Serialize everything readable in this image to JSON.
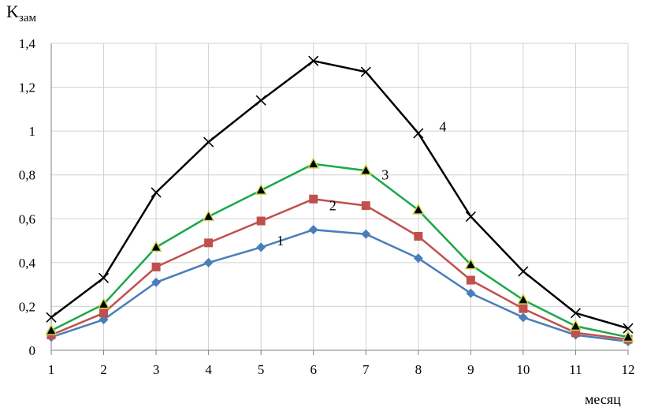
{
  "chart_data": {
    "type": "line",
    "title": "",
    "ylabel_main": "K",
    "ylabel_sub": "зам",
    "xlabel": "месяц",
    "x": [
      1,
      2,
      3,
      4,
      5,
      6,
      7,
      8,
      9,
      10,
      11,
      12
    ],
    "ylim": [
      0,
      1.4
    ],
    "yticks": [
      "0",
      "0,2",
      "0,4",
      "0,6",
      "0,8",
      "1",
      "1,2",
      "1,4"
    ],
    "xticks": [
      "1",
      "2",
      "3",
      "4",
      "5",
      "6",
      "7",
      "8",
      "9",
      "10",
      "11",
      "12"
    ],
    "grid": true,
    "series": [
      {
        "name": "1",
        "color": "#4a7ebb",
        "marker": "diamond",
        "values": [
          0.06,
          0.14,
          0.31,
          0.4,
          0.47,
          0.55,
          0.53,
          0.42,
          0.26,
          0.15,
          0.07,
          0.04
        ]
      },
      {
        "name": "2",
        "color": "#c0504d",
        "marker": "square",
        "values": [
          0.07,
          0.17,
          0.38,
          0.49,
          0.59,
          0.69,
          0.66,
          0.52,
          0.32,
          0.19,
          0.08,
          0.05
        ]
      },
      {
        "name": "3",
        "color": "#1ca84a",
        "marker": "triangle",
        "values": [
          0.09,
          0.21,
          0.47,
          0.61,
          0.73,
          0.85,
          0.82,
          0.64,
          0.39,
          0.23,
          0.11,
          0.06
        ]
      },
      {
        "name": "4",
        "color": "#000000",
        "marker": "x",
        "values": [
          0.15,
          0.33,
          0.72,
          0.95,
          1.14,
          1.32,
          1.27,
          0.99,
          0.61,
          0.36,
          0.17,
          0.1
        ]
      }
    ]
  }
}
